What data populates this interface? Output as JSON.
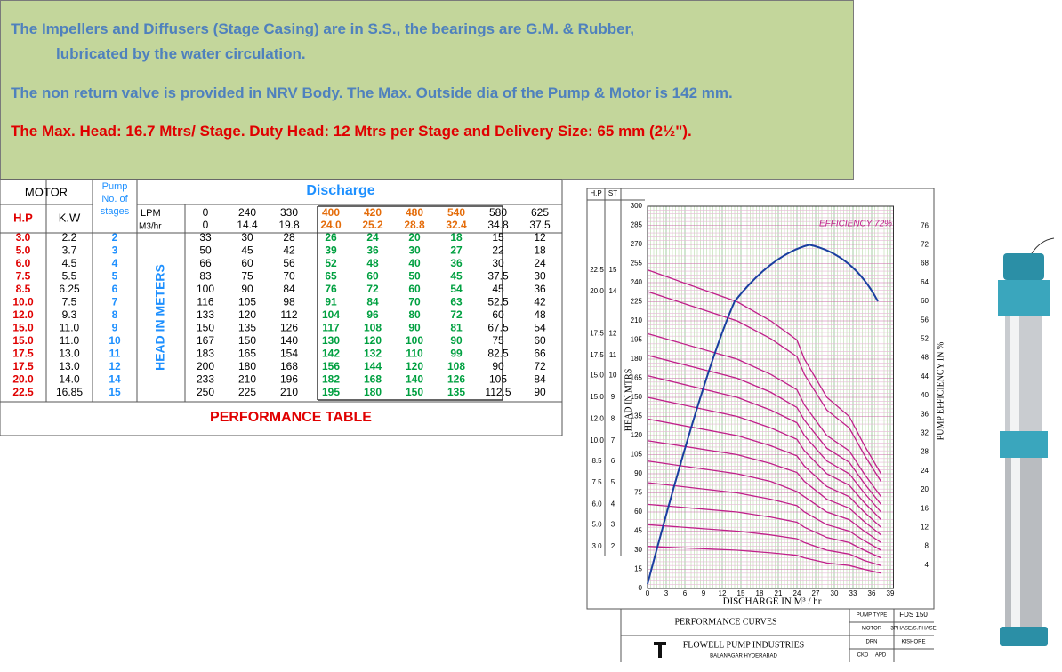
{
  "notes": [
    "The Impellers and Diffusers (Stage Casing) are in S.S., the bearings are G.M. & Rubber,",
    "lubricated by the water circulation.",
    "The non return valve is provided in NRV Body.  The Max.  Outside dia of the Pump & Motor is 142 mm.",
    "The Max. Head: 16.7 Mtrs/ Stage. Duty Head: 12 Mtrs per Stage and Delivery Size: 65 mm (2½\")."
  ],
  "table": {
    "motor": "MOTOR",
    "pump_stages": [
      "Pump",
      "No. of",
      "stages"
    ],
    "discharge": "Discharge",
    "hp": "H.P",
    "kw": "K.W",
    "lpm_label": "LPM",
    "m3hr_label": "M3/hr",
    "head_label": "HEAD IN METERS",
    "lpm": [
      "0",
      "240",
      "330",
      "400",
      "420",
      "480",
      "540",
      "580",
      "625"
    ],
    "m3hr": [
      "0",
      "14.4",
      "19.8",
      "24.0",
      "25.2",
      "28.8",
      "32.4",
      "34.8",
      "37.5"
    ],
    "rows": [
      {
        "hp": "3.0",
        "kw": "2.2",
        "stages": "2",
        "heads": [
          "33",
          "30",
          "28",
          "26",
          "24",
          "20",
          "18",
          "15",
          "12"
        ]
      },
      {
        "hp": "5.0",
        "kw": "3.7",
        "stages": "3",
        "heads": [
          "50",
          "45",
          "42",
          "39",
          "36",
          "30",
          "27",
          "22",
          "18"
        ]
      },
      {
        "hp": "6.0",
        "kw": "4.5",
        "stages": "4",
        "heads": [
          "66",
          "60",
          "56",
          "52",
          "48",
          "40",
          "36",
          "30",
          "24"
        ]
      },
      {
        "hp": "7.5",
        "kw": "5.5",
        "stages": "5",
        "heads": [
          "83",
          "75",
          "70",
          "65",
          "60",
          "50",
          "45",
          "37.5",
          "30"
        ]
      },
      {
        "hp": "8.5",
        "kw": "6.25",
        "stages": "6",
        "heads": [
          "100",
          "90",
          "84",
          "76",
          "72",
          "60",
          "54",
          "45",
          "36"
        ]
      },
      {
        "hp": "10.0",
        "kw": "7.5",
        "stages": "7",
        "heads": [
          "116",
          "105",
          "98",
          "91",
          "84",
          "70",
          "63",
          "52.5",
          "42"
        ]
      },
      {
        "hp": "12.0",
        "kw": "9.3",
        "stages": "8",
        "heads": [
          "133",
          "120",
          "112",
          "104",
          "96",
          "80",
          "72",
          "60",
          "48"
        ]
      },
      {
        "hp": "15.0",
        "kw": "11.0",
        "stages": "9",
        "heads": [
          "150",
          "135",
          "126",
          "117",
          "108",
          "90",
          "81",
          "67.5",
          "54"
        ]
      },
      {
        "hp": "15.0",
        "kw": "11.0",
        "stages": "10",
        "heads": [
          "167",
          "150",
          "140",
          "130",
          "120",
          "100",
          "90",
          "75",
          "60"
        ]
      },
      {
        "hp": "17.5",
        "kw": "13.0",
        "stages": "11",
        "heads": [
          "183",
          "165",
          "154",
          "142",
          "132",
          "110",
          "99",
          "82.5",
          "66"
        ]
      },
      {
        "hp": "17.5",
        "kw": "13.0",
        "stages": "12",
        "heads": [
          "200",
          "180",
          "168",
          "156",
          "144",
          "120",
          "108",
          "90",
          "72"
        ]
      },
      {
        "hp": "20.0",
        "kw": "14.0",
        "stages": "14",
        "heads": [
          "233",
          "210",
          "196",
          "182",
          "168",
          "140",
          "126",
          "105",
          "84"
        ]
      },
      {
        "hp": "22.5",
        "kw": "16.85",
        "stages": "15",
        "heads": [
          "250",
          "225",
          "210",
          "195",
          "180",
          "150",
          "135",
          "112.5",
          "90"
        ]
      }
    ],
    "caption": "PERFORMANCE TABLE"
  },
  "graph": {
    "hp_label": "H.P",
    "st_label": "ST",
    "efficiency_label": "EFFICIENCY 72%",
    "head_axis": "HEAD  IN  MTRS",
    "eff_axis": "PUMP  EFFICIENCY  IN  %",
    "x_axis": "DISCHARGE IN M³ / hr",
    "head_ticks": [
      "0",
      "15",
      "30",
      "45",
      "60",
      "75",
      "90",
      "105",
      "120",
      "135",
      "150",
      "165",
      "180",
      "195",
      "210",
      "225",
      "240",
      "255",
      "270",
      "285",
      "300"
    ],
    "eff_ticks": [
      "4",
      "8",
      "12",
      "16",
      "20",
      "24",
      "28",
      "32",
      "36",
      "40",
      "44",
      "48",
      "52",
      "56",
      "60",
      "64",
      "68",
      "72",
      "76"
    ],
    "x_ticks": [
      "0",
      "3",
      "6",
      "9",
      "12",
      "15",
      "18",
      "21",
      "24",
      "27",
      "30",
      "33",
      "36",
      "39"
    ],
    "stage_labels": [
      {
        "hp": "22.5",
        "st": "15"
      },
      {
        "hp": "20.0",
        "st": "14"
      },
      {
        "hp": "17.5",
        "st": "12"
      },
      {
        "hp": "17.5",
        "st": "11"
      },
      {
        "hp": "15.0",
        "st": "10"
      },
      {
        "hp": "15.0",
        "st": "9"
      },
      {
        "hp": "12.0",
        "st": "8"
      },
      {
        "hp": "10.0",
        "st": "7"
      },
      {
        "hp": "8.5",
        "st": "6"
      },
      {
        "hp": "7.5",
        "st": "5"
      },
      {
        "hp": "6.0",
        "st": "4"
      },
      {
        "hp": "5.0",
        "st": "3"
      },
      {
        "hp": "3.0",
        "st": "2"
      }
    ],
    "title_block": {
      "title": "PERFORMANCE CURVES",
      "company": "FLOWELL PUMP INDUSTRIES",
      "address": "BALANAGAR HYDERABAD",
      "pump_type_label": "PUMP TYPE",
      "pump_type": "FDS 150",
      "motor_label": "MOTOR",
      "motor": "3PHASE/S.PHASE",
      "drn_label": "DRN",
      "drn": "KISHORE",
      "ckd_label": "CKD",
      "apd_label": "APD"
    }
  }
}
